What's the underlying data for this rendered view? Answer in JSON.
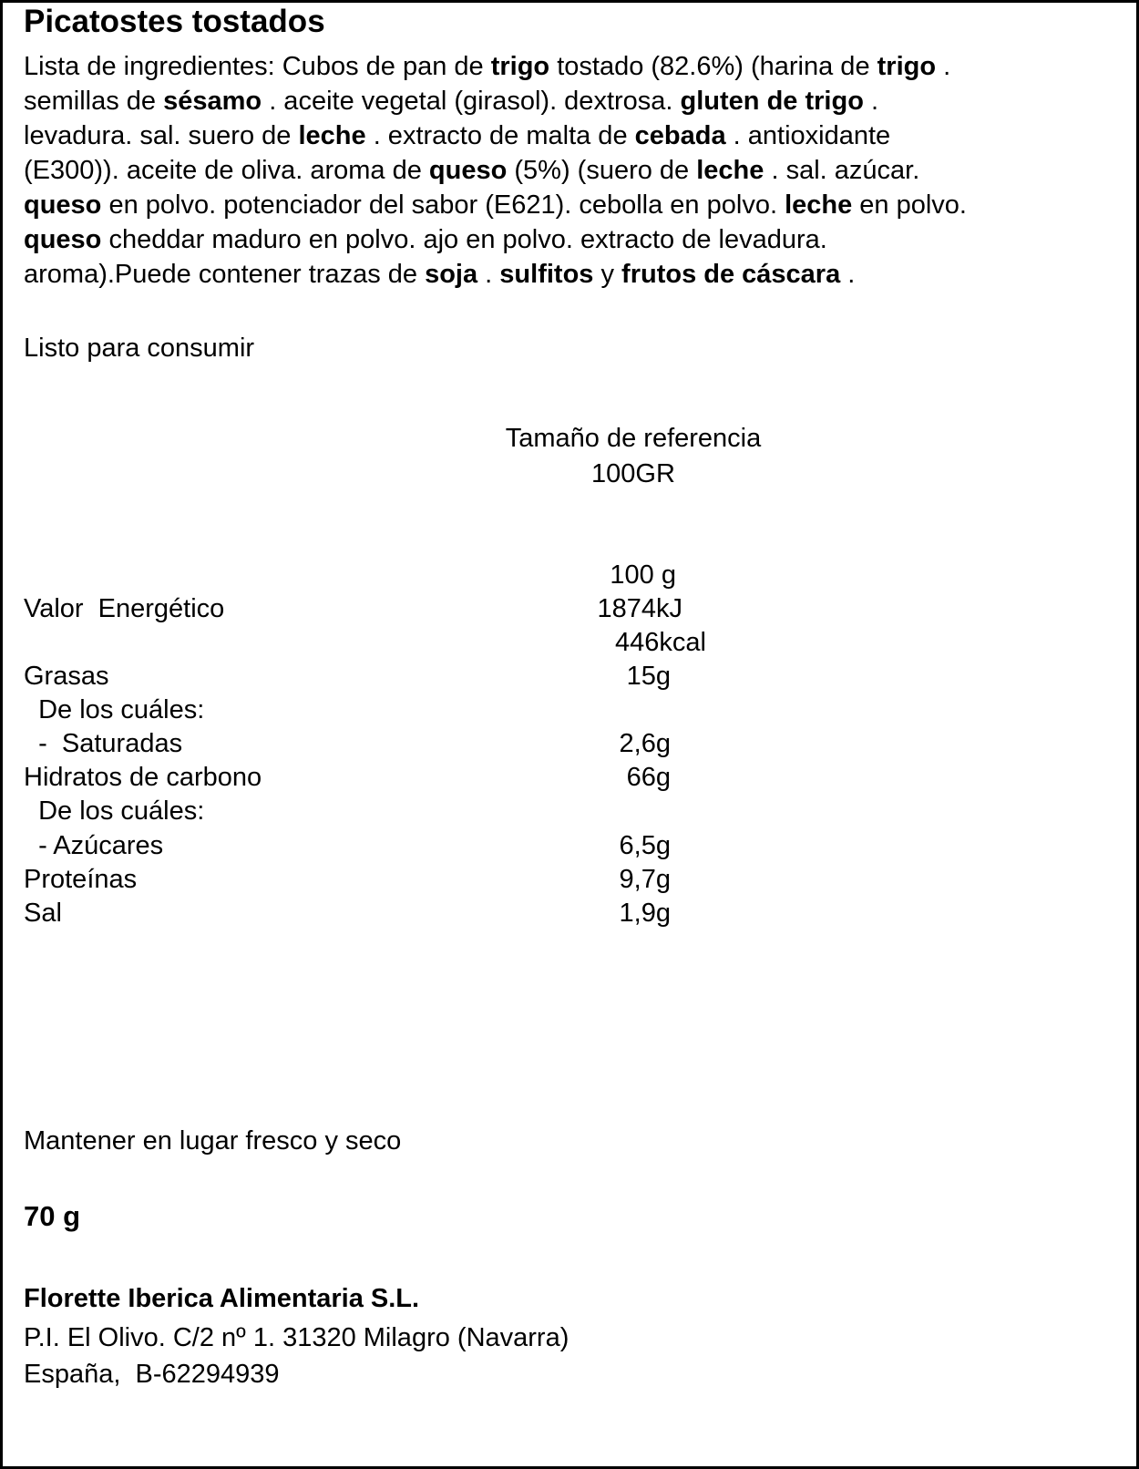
{
  "title": "Picatostes tostados",
  "ingredients_lines": [
    [
      {
        "t": "Lista de ingredientes: Cubos de pan de "
      },
      {
        "t": "trigo",
        "b": true
      },
      {
        "t": " tostado (82.6%) (harina de "
      },
      {
        "t": "trigo",
        "b": true
      },
      {
        "t": " ."
      }
    ],
    [
      {
        "t": "semillas de "
      },
      {
        "t": "sésamo",
        "b": true
      },
      {
        "t": " . aceite vegetal (girasol). dextrosa. "
      },
      {
        "t": "gluten de trigo",
        "b": true
      },
      {
        "t": " ."
      }
    ],
    [
      {
        "t": "levadura. sal. suero de "
      },
      {
        "t": "leche",
        "b": true
      },
      {
        "t": " . extracto de malta de "
      },
      {
        "t": "cebada",
        "b": true
      },
      {
        "t": " . antioxidante"
      }
    ],
    [
      {
        "t": "(E300)). aceite de oliva. aroma de "
      },
      {
        "t": "queso",
        "b": true
      },
      {
        "t": " (5%) (suero de "
      },
      {
        "t": "leche",
        "b": true
      },
      {
        "t": " . sal. azúcar."
      }
    ],
    [
      {
        "t": "queso",
        "b": true
      },
      {
        "t": " en polvo. potenciador del sabor (E621). cebolla en polvo. "
      },
      {
        "t": "leche",
        "b": true
      },
      {
        "t": " en polvo."
      }
    ],
    [
      {
        "t": "queso",
        "b": true
      },
      {
        "t": " cheddar maduro en polvo. ajo en polvo. extracto de levadura."
      }
    ],
    [
      {
        "t": "aroma).Puede contener trazas de "
      },
      {
        "t": "soja",
        "b": true
      },
      {
        "t": " . "
      },
      {
        "t": "sulfitos",
        "b": true
      },
      {
        "t": " y "
      },
      {
        "t": "frutos de cáscara",
        "b": true
      },
      {
        "t": " ."
      }
    ]
  ],
  "usage": "Listo para consumir",
  "reference": {
    "label": "Tamaño de referencia",
    "value": "100GR"
  },
  "nutrition": {
    "column_header": "100 g",
    "rows": [
      {
        "label": "Valor  Energético",
        "value": "1874kJ"
      },
      {
        "label": "",
        "value": "446kcal"
      },
      {
        "label": "Grasas",
        "value": "15g"
      },
      {
        "label": "  De los cuáles:",
        "value": ""
      },
      {
        "label": "  -  Saturadas",
        "value": "2,6g"
      },
      {
        "label": "Hidratos de carbono",
        "value": "66g"
      },
      {
        "label": "  De los cuáles:",
        "value": ""
      },
      {
        "label": "  - Azúcares",
        "value": "6,5g"
      },
      {
        "label": "Proteínas",
        "value": "9,7g"
      },
      {
        "label": "Sal",
        "value": "1,9g"
      }
    ]
  },
  "storage": "Mantener en lugar fresco y seco",
  "net_weight": "70 g",
  "company": {
    "name": "Florette Iberica Alimentaria S.L.",
    "address": "P.I. El Olivo. C/2 nº 1. 31320 Milagro (Navarra)",
    "country_id": "España,  B-62294939"
  }
}
